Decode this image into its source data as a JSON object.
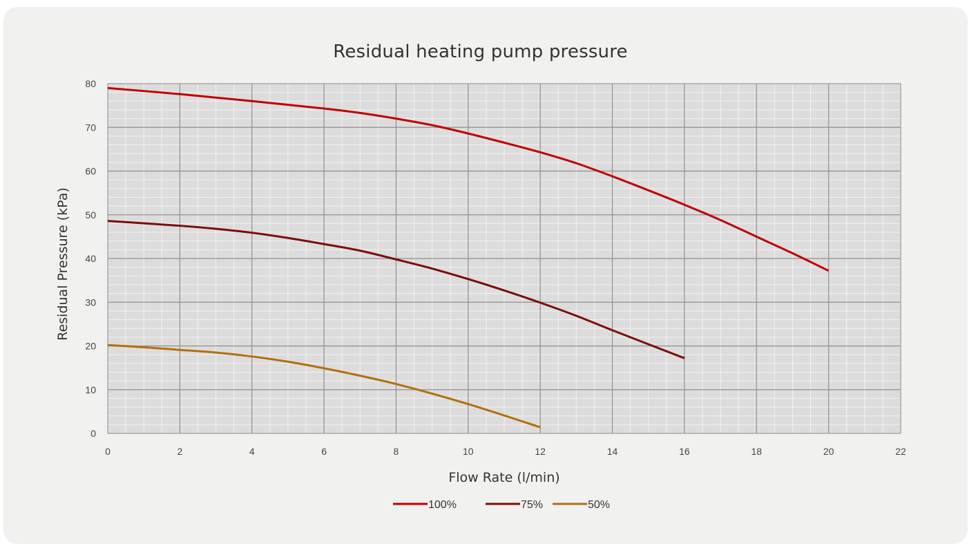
{
  "chart_data": {
    "type": "line",
    "title": "Residual heating pump pressure",
    "xlabel": "Flow Rate (l/min)",
    "ylabel": "Residual Pressure (kPa)",
    "xlim": [
      0,
      22
    ],
    "ylim": [
      0,
      80
    ],
    "x_ticks": [
      0,
      2,
      4,
      6,
      8,
      10,
      12,
      14,
      16,
      18,
      20,
      22
    ],
    "y_ticks": [
      0,
      10,
      20,
      30,
      40,
      50,
      60,
      70,
      80
    ],
    "x_minor_step": 0.5,
    "y_minor_step": 2,
    "grid": true,
    "legend_position": "bottom",
    "series": [
      {
        "name": "100%",
        "color": "#c00000",
        "x": [
          0,
          2,
          4,
          6,
          7,
          8,
          9,
          10,
          11,
          12,
          13,
          14,
          15,
          16,
          17,
          18,
          19,
          20
        ],
        "y": [
          79,
          77.6,
          76,
          74.3,
          73.3,
          72,
          70.5,
          68.6,
          66.5,
          64.3,
          61.8,
          58.8,
          55.6,
          52.3,
          48.8,
          45,
          41.2,
          37.2
        ]
      },
      {
        "name": "75%",
        "color": "#7b0c0c",
        "x": [
          0,
          2,
          3,
          4,
          5,
          6,
          7,
          8,
          9,
          10,
          11,
          12,
          13,
          14,
          15,
          16
        ],
        "y": [
          48.6,
          47.5,
          46.8,
          45.9,
          44.7,
          43.3,
          41.8,
          39.8,
          37.7,
          35.3,
          32.7,
          29.9,
          26.9,
          23.6,
          20.4,
          17.2
        ]
      },
      {
        "name": "50%",
        "color": "#b0700e",
        "x": [
          0,
          1,
          2,
          3,
          4,
          5,
          6,
          7,
          8,
          9,
          10,
          11,
          12
        ],
        "y": [
          20.2,
          19.7,
          19.1,
          18.5,
          17.6,
          16.4,
          14.9,
          13.2,
          11.3,
          9.1,
          6.7,
          4.1,
          1.4
        ]
      }
    ]
  }
}
